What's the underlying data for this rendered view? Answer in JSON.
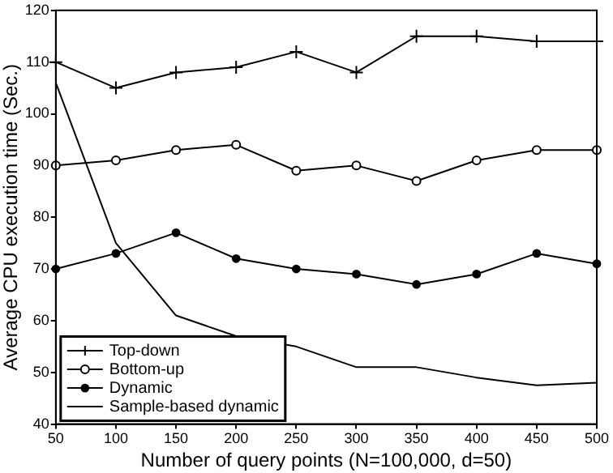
{
  "chart_data": {
    "type": "line",
    "xlabel": "Number of query points (N=100,000, d=50)",
    "ylabel": "Average CPU execution time (Sec.)",
    "x": [
      50,
      100,
      150,
      200,
      250,
      300,
      350,
      400,
      450,
      500
    ],
    "series": [
      {
        "name": "Top-down",
        "color": "#000000",
        "marker": "cross",
        "values": [
          110,
          105,
          108,
          109,
          112,
          108,
          115,
          115,
          114,
          114
        ]
      },
      {
        "name": "Bottom-up",
        "color": "#000000",
        "marker": "circle",
        "values": [
          90,
          91,
          93,
          94,
          89,
          90,
          87,
          91,
          93,
          93
        ]
      },
      {
        "name": "Dynamic",
        "color": "#000000",
        "marker": "filled circle",
        "values": [
          70,
          73,
          77,
          72,
          70,
          69,
          67,
          69,
          73,
          71
        ]
      },
      {
        "name": "Sample-based dynamic",
        "color": "#000000",
        "marker": "none",
        "values": [
          106,
          75,
          61,
          57,
          55,
          51,
          51,
          49,
          47.5,
          48
        ]
      }
    ],
    "xlim": [
      50,
      500
    ],
    "xticks": [
      50,
      100,
      150,
      200,
      250,
      300,
      350,
      400,
      450,
      500
    ],
    "ylim": [
      40,
      120
    ],
    "yticks": [
      40,
      50,
      60,
      70,
      80,
      90,
      100,
      110,
      120
    ],
    "grid": false,
    "legend": "bottom left",
    "line_style": "solid"
  }
}
